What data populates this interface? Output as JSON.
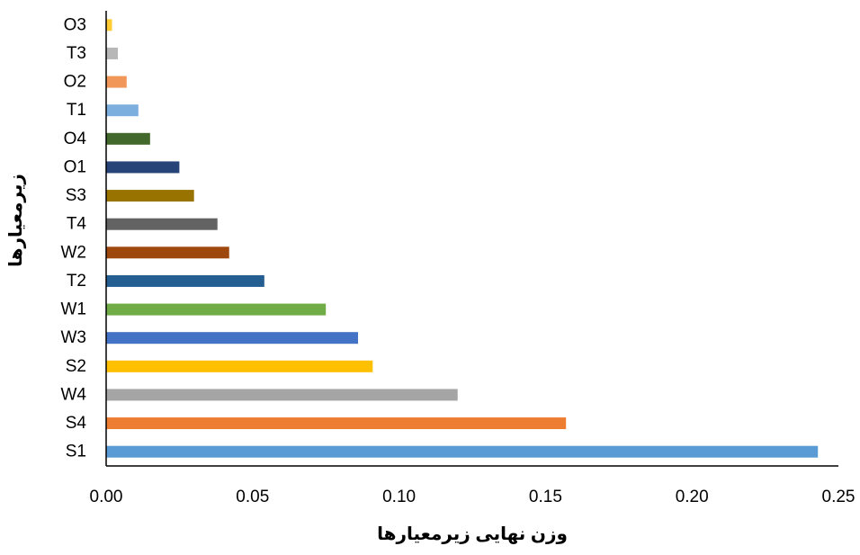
{
  "chart_data": {
    "type": "bar",
    "orientation": "horizontal",
    "xlabel": "وزن نهایی زیرمعیارها",
    "ylabel": "زیرمعیارها",
    "xlim": [
      0,
      0.25
    ],
    "x_ticks": [
      "0.00",
      "0.05",
      "0.10",
      "0.15",
      "0.20",
      "0.25"
    ],
    "grid": false,
    "categories": [
      "S1",
      "S4",
      "W4",
      "S2",
      "W3",
      "W1",
      "T2",
      "W2",
      "T4",
      "S3",
      "O1",
      "O4",
      "T1",
      "O2",
      "T3",
      "O3"
    ],
    "values": [
      0.243,
      0.157,
      0.12,
      0.091,
      0.086,
      0.075,
      0.054,
      0.042,
      0.038,
      0.03,
      0.025,
      0.015,
      0.011,
      0.007,
      0.004,
      0.002
    ],
    "colors": [
      "#5B9BD5",
      "#ED7D31",
      "#A5A5A5",
      "#FFC000",
      "#4472C4",
      "#70AD47",
      "#255E91",
      "#9E480E",
      "#636363",
      "#997300",
      "#264478",
      "#43682B",
      "#7CAFDD",
      "#F1975A",
      "#B7B7B7",
      "#FFCD33"
    ]
  }
}
